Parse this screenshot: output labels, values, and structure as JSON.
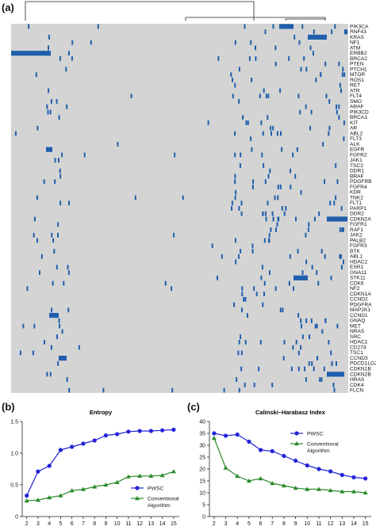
{
  "panels": {
    "a": "(a)",
    "b": "(b)",
    "c": "(c)"
  },
  "colors": {
    "heat_background": "#d4d4d4",
    "mutation": "#1f5fad",
    "pwsc_series": "#2323d6",
    "conventional_series": "#2a8a2a"
  },
  "heatmap": {
    "genes": [
      "PIK3CA",
      "RNF43",
      "KRAS",
      "NF1",
      "ATM",
      "ERBB2",
      "BRCA2",
      "PTEN",
      "PTCH1",
      "MTOR",
      "ROS1",
      "RET",
      "ATR",
      "FLT4",
      "SMO",
      "ARAF",
      "PIK3CD",
      "BRCA1",
      "KIT",
      "AR",
      "ABL2",
      "FLT3",
      "ALK",
      "EGFR",
      "FGFR2",
      "JAK1",
      "TSC2",
      "DDR1",
      "BRAF",
      "PDGFRB",
      "FGFR4",
      "KDR",
      "TNK2",
      "FLT1",
      "PARP1",
      "DDR2",
      "CDKN2A",
      "FGFR1",
      "RAF1",
      "JAK2",
      "PALB2",
      "FGFR3",
      "BTK",
      "ABL1",
      "HDAC2",
      "ESR1",
      "GNA11",
      "STK11",
      "CDK6",
      "NF2",
      "CDKN1A",
      "CCND2",
      "PDGFRA",
      "MAP2K1",
      "CCND1",
      "GNAQ",
      "MET",
      "NRAS",
      "SRC",
      "HDAC1",
      "CD274",
      "TSC1",
      "CCND3",
      "PDCD1LG2",
      "CDKN1B",
      "CDKN2B",
      "HRAS",
      "CDK4",
      "FLCN"
    ]
  },
  "chart_data": [
    {
      "type": "line",
      "title": "Entropy",
      "x": [
        2,
        3,
        4,
        5,
        6,
        7,
        8,
        9,
        10,
        11,
        12,
        13,
        14,
        15
      ],
      "xlim": [
        1.6,
        15.5
      ],
      "ylim": [
        0,
        1.5
      ],
      "yticks": [
        0,
        0.5,
        1.0,
        1.5
      ],
      "ytick_labels": [
        "0",
        "0.5",
        "1.0",
        "1.5"
      ],
      "series": [
        {
          "name": "PWSC",
          "values": [
            0.33,
            0.71,
            0.8,
            1.05,
            1.1,
            1.15,
            1.2,
            1.28,
            1.3,
            1.34,
            1.35,
            1.35,
            1.36,
            1.37
          ]
        },
        {
          "name": "Conventional Algorithm",
          "values": [
            0.25,
            0.26,
            0.3,
            0.33,
            0.41,
            0.43,
            0.47,
            0.5,
            0.54,
            0.63,
            0.64,
            0.64,
            0.65,
            0.71
          ]
        }
      ],
      "legend": {
        "placement": "bottom-right",
        "labels": [
          "PWSC",
          "Conventional",
          "Algorithm"
        ]
      }
    },
    {
      "type": "line",
      "title": "Calinski–Harabasz Index",
      "x": [
        2,
        3,
        4,
        5,
        6,
        7,
        8,
        9,
        10,
        11,
        12,
        13,
        14,
        15
      ],
      "xlim": [
        1.6,
        15.5
      ],
      "ylim": [
        0,
        40
      ],
      "yticks": [
        0,
        5,
        10,
        15,
        20,
        25,
        30,
        35,
        40
      ],
      "ytick_labels": [
        "0",
        "5",
        "10",
        "15",
        "20",
        "25",
        "30",
        "35",
        "40"
      ],
      "series": [
        {
          "name": "PWSC",
          "values": [
            35.0,
            34.0,
            34.5,
            31.5,
            28.0,
            27.5,
            25.5,
            23.5,
            21.5,
            20.0,
            19.0,
            17.5,
            16.5,
            16.0
          ]
        },
        {
          "name": "Conventional Algorithm",
          "values": [
            33.0,
            20.5,
            17.0,
            15.0,
            16.0,
            14.0,
            13.0,
            12.0,
            11.5,
            11.5,
            11.0,
            10.5,
            10.5,
            10.0
          ]
        }
      ],
      "legend": {
        "placement": "top-right",
        "labels": [
          "PWSC",
          "Conventional",
          "Algorithm"
        ]
      }
    }
  ]
}
